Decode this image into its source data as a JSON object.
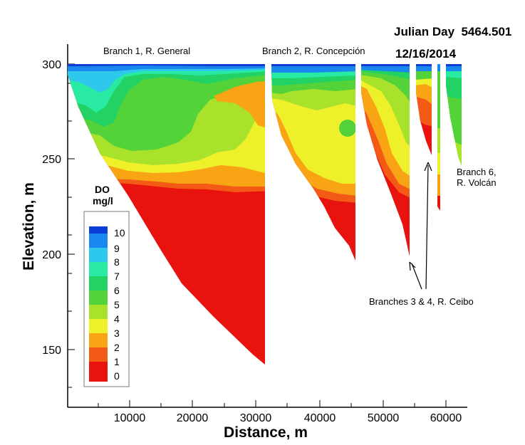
{
  "header": {
    "julian_day": "Julian Day  5464.501",
    "date": "12/16/2014"
  },
  "colors": {
    "scale": [
      "#e8120e",
      "#f35a16",
      "#f8a414",
      "#eef02a",
      "#a8e22a",
      "#54d23a",
      "#22d264",
      "#28eaa2",
      "#2ec8ec",
      "#1888f0",
      "#0a3ed6"
    ]
  },
  "chart_data": {
    "type": "heatmap",
    "title": "",
    "xlabel": "Distance, m",
    "ylabel": "Elevation, m",
    "xlim": [
      0,
      62000
    ],
    "ylim": [
      130,
      310
    ],
    "x_ticks": [
      "10000",
      "20000",
      "30000",
      "40000",
      "50000",
      "60000"
    ],
    "y_ticks": [
      "150",
      "200",
      "250",
      "300"
    ],
    "legend": {
      "title_line1": "DO",
      "title_line2": "mg/l",
      "levels": [
        "10",
        "9",
        "8",
        "7",
        "6",
        "5",
        "4",
        "3",
        "2",
        "1",
        "0"
      ]
    },
    "annotations": {
      "branch1": "Branch 1, R. General",
      "branch2": "Branch 2, R. Concepción",
      "branch34": "Branches 3 & 4, R. Ceibo",
      "branch6_line1": "Branch 6,",
      "branch6_line2": "R. Volcán"
    },
    "branches": [
      {
        "x_start": 0,
        "x_end": 31000,
        "bottom_elevation": 143
      },
      {
        "x_start": 31500,
        "x_end": 45500,
        "bottom_elevation": 197
      },
      {
        "x_start": 46300,
        "x_end": 54000,
        "bottom_elevation": 199
      },
      {
        "x_start": 54600,
        "x_end": 57200,
        "bottom_elevation": 253
      },
      {
        "x_start": 58000,
        "x_end": 58400,
        "bottom_elevation": 223
      },
      {
        "x_start": 59300,
        "x_end": 62000,
        "bottom_elevation": 247
      }
    ]
  }
}
